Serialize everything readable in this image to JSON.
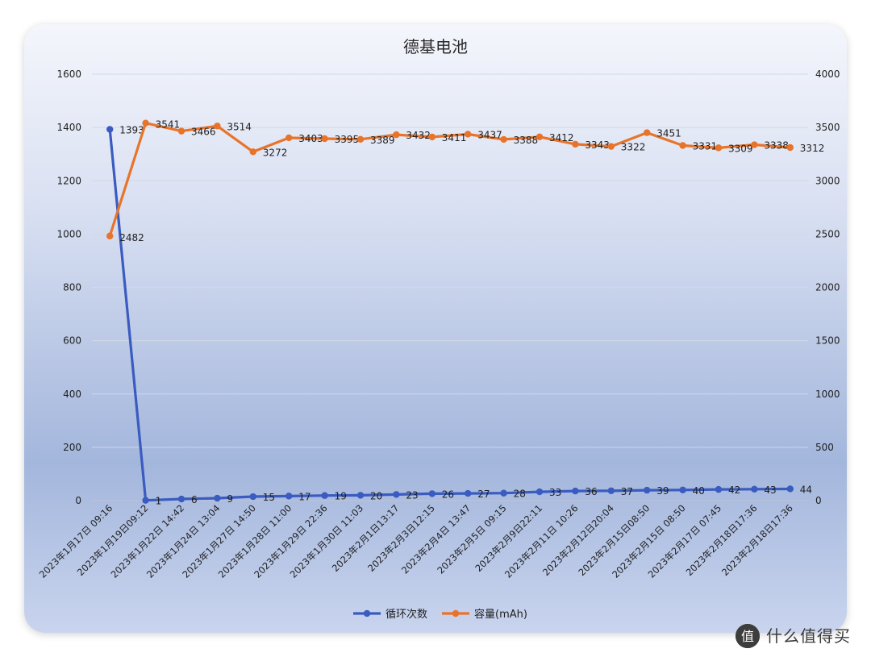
{
  "chart_data": {
    "type": "line",
    "title": "德基电池",
    "categories": [
      "2023年1月17日 09:16",
      "2023年1月19日09:12",
      "2023年1月22日 14:42",
      "2023年1月24日 13:04",
      "2023年1月27日 14:50",
      "2023年1月28日 11:00",
      "2023年1月29日 22:36",
      "2023年1月30日 11:03",
      "2023年2月1日13:17",
      "2023年2月3日12:15",
      "2023年2月4日 13:47",
      "2023年2月5日 09:15",
      "2023年2月9日22:11",
      "2023年2月11日 10:26",
      "2023年2月12日20:04",
      "2023年2月15日08:50",
      "2023年2月15日 08:50",
      "2023年2月17日 07:45",
      "2023年2月18日17:36",
      "2023年2月18日17:36"
    ],
    "series": [
      {
        "name": "循环次数",
        "axis": "left",
        "color": "#3a5bbf",
        "values": [
          1393,
          1,
          6,
          9,
          15,
          17,
          19,
          20,
          23,
          26,
          27,
          28,
          33,
          36,
          37,
          39,
          40,
          42,
          43,
          44
        ]
      },
      {
        "name": "容量(mAh)",
        "axis": "right",
        "color": "#e8742a",
        "values": [
          2482,
          3541,
          3466,
          3514,
          3272,
          3403,
          3395,
          3389,
          3432,
          3411,
          3437,
          3388,
          3412,
          3343,
          3322,
          3451,
          3331,
          3309,
          3338,
          3312
        ]
      }
    ],
    "y_left": {
      "min": 0,
      "max": 1600,
      "ticks": [
        0,
        200,
        400,
        600,
        800,
        1000,
        1200,
        1400,
        1600
      ]
    },
    "y_right": {
      "min": 0,
      "max": 4000,
      "ticks": [
        0,
        500,
        1000,
        1500,
        2000,
        2500,
        3000,
        3500,
        4000
      ]
    },
    "grid": true,
    "legend_position": "bottom"
  },
  "watermark": {
    "text": "什么值得买",
    "icon": "zhi-logo-icon"
  }
}
